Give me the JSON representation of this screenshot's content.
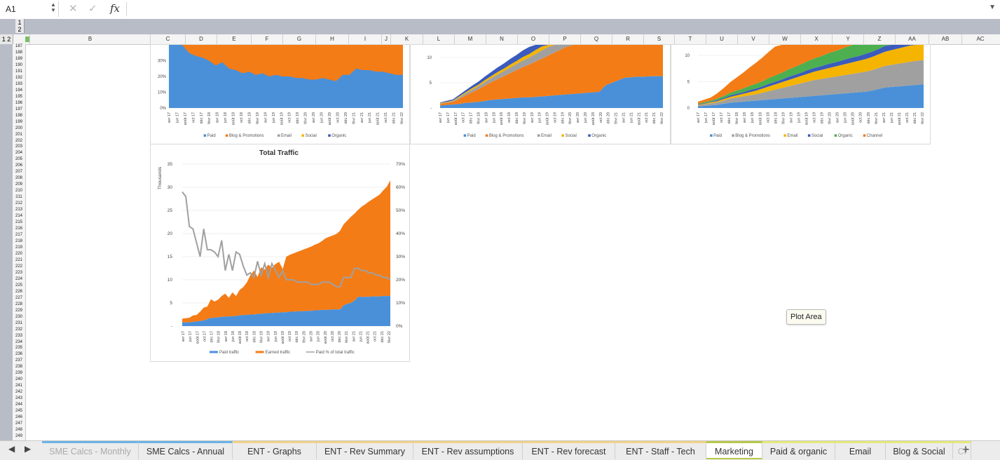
{
  "formula_bar": {
    "cell_ref": "A1",
    "fx_label": "fx",
    "cancel_icon": "close-icon",
    "enter_icon": "check-icon",
    "content": ""
  },
  "outline": {
    "levels": [
      "1",
      "2"
    ],
    "row_level_label": "1 2"
  },
  "columns": [
    "B",
    "C",
    "D",
    "E",
    "F",
    "G",
    "H",
    "I",
    "J",
    "K",
    "L",
    "M",
    "N",
    "O",
    "P",
    "Q",
    "R",
    "S",
    "T",
    "U",
    "V",
    "W",
    "X",
    "Y",
    "Z",
    "AA",
    "AB",
    "AC"
  ],
  "rows": {
    "first": 187,
    "last": 249
  },
  "tooltip": {
    "text": "Plot Area"
  },
  "tabs": [
    {
      "label": "SME Calcs - Monthly",
      "color": "#6ab4e8"
    },
    {
      "label": "SME Calcs - Annual",
      "color": "#6ab4e8"
    },
    {
      "label": "ENT - Graphs",
      "color": "#f2d28a"
    },
    {
      "label": "ENT - Rev Summary",
      "color": "#f2d28a"
    },
    {
      "label": "ENT - Rev assumptions",
      "color": "#f2d28a"
    },
    {
      "label": "ENT - Rev forecast",
      "color": "#f2d28a"
    },
    {
      "label": "ENT - Staff - Tech",
      "color": "#f2d28a"
    },
    {
      "label": "Marketing",
      "color": "#b8c84a",
      "active": true
    },
    {
      "label": "Paid & organic",
      "color": "#e6e87a"
    },
    {
      "label": "Email",
      "color": "#e6e87a"
    },
    {
      "label": "Blog & Social",
      "color": "#e6e87a"
    },
    {
      "label": "Cl",
      "color": "#e6e87a"
    }
  ],
  "add_sheet_label": "+",
  "charts_top": [
    {
      "type": "area",
      "y_ticks": [
        "0%",
        "10%",
        "20%",
        "30%"
      ],
      "x_ticks": [
        "avr 17",
        "jun 17",
        "août 17",
        "oct 17",
        "déc 17",
        "févr 18",
        "avr 18",
        "jun 18",
        "août 18",
        "oct 18",
        "déc 18",
        "févr 19",
        "avr 19",
        "jun 19",
        "août 19",
        "oct 19",
        "déc 19",
        "févr 20",
        "avr 20",
        "jun 20",
        "août 20",
        "oct 20",
        "déc 20",
        "févr 21",
        "avr 21",
        "jun 21",
        "août 21",
        "oct 21",
        "déc 21",
        "févr 22"
      ],
      "legend": [
        {
          "name": "Paid",
          "color": "#4a90d9"
        },
        {
          "name": "Blog & Promotions",
          "color": "#f47c16"
        },
        {
          "name": "Email",
          "color": "#a0a0a0"
        },
        {
          "name": "Social",
          "color": "#f5b400"
        },
        {
          "name": "Organic",
          "color": "#3a5bbd"
        }
      ],
      "series": [
        {
          "name": "Paid",
          "values": [
            55,
            42,
            40,
            35,
            33,
            32,
            30,
            27,
            29,
            25,
            24,
            22,
            23,
            21,
            22,
            20,
            21,
            20,
            20,
            19,
            19,
            18,
            18,
            19,
            18,
            17,
            21,
            21,
            25,
            24,
            24,
            23,
            23,
            22,
            21,
            21
          ]
        }
      ]
    },
    {
      "type": "area",
      "y_ticks": [
        "-",
        "5",
        "10"
      ],
      "x_ticks": [
        "avr 17",
        "jun 17",
        "août 17",
        "oct 17",
        "déc 17",
        "févr 18",
        "avr 18",
        "jun 18",
        "août 18",
        "oct 18",
        "déc 18",
        "févr 19",
        "avr 19",
        "jun 19",
        "août 19",
        "oct 19",
        "déc 19",
        "févr 20",
        "avr 20",
        "jun 20",
        "août 20",
        "oct 20",
        "déc 20",
        "févr 21",
        "avr 21",
        "jun 21",
        "août 21",
        "oct 21",
        "déc 21",
        "févr 22"
      ],
      "legend": [
        {
          "name": "Paid",
          "color": "#4a90d9"
        },
        {
          "name": "Blog & Promotions",
          "color": "#f47c16"
        },
        {
          "name": "Email",
          "color": "#a0a0a0"
        },
        {
          "name": "Social",
          "color": "#f5b400"
        },
        {
          "name": "Organic",
          "color": "#3a5bbd"
        }
      ],
      "series": [
        {
          "name": "Paid",
          "values": [
            0.5,
            0.6,
            0.7,
            0.8,
            1.0,
            1.1,
            1.2,
            1.4,
            1.6,
            1.7,
            1.8,
            1.9,
            2.0,
            2.1,
            2.1,
            2.2,
            2.3,
            2.4,
            2.5,
            2.6,
            2.7,
            2.8,
            2.9,
            3.0,
            3.1,
            3.2,
            4.5,
            5.0,
            5.5,
            6.0,
            6.1,
            6.2,
            6.2,
            6.3,
            6.3,
            6.3
          ]
        },
        {
          "name": "Blog & Promotions",
          "values": [
            0.3,
            0.4,
            0.5,
            1.0,
            1.5,
            2.0,
            2.5,
            3.0,
            3.5,
            4.0,
            4.5,
            5.0,
            5.5,
            6.0,
            6.5,
            7.0,
            7.5,
            8.0,
            8.5,
            9.0,
            9.5,
            10,
            10.5,
            11,
            11.5,
            12,
            12.5,
            13,
            13.5,
            14,
            14.5,
            15,
            15.5,
            16,
            16.5,
            17
          ]
        },
        {
          "name": "Email",
          "values": [
            0.1,
            0.1,
            0.2,
            0.3,
            0.4,
            0.5,
            0.6,
            0.7,
            0.8,
            0.9,
            1.0,
            1.1,
            1.2,
            1.3,
            1.4,
            1.5,
            1.6,
            1.7,
            1.8,
            1.9,
            2.0,
            2.1,
            2.2,
            2.3,
            2.4,
            2.5,
            2.6,
            2.7,
            2.8,
            2.9,
            3.0,
            3.1,
            3.2,
            3.3,
            3.4,
            3.5
          ]
        },
        {
          "name": "Social",
          "values": [
            0.1,
            0.1,
            0.1,
            0.2,
            0.2,
            0.3,
            0.3,
            0.4,
            0.4,
            0.5,
            0.5,
            0.6,
            0.6,
            0.7,
            0.7,
            0.8,
            0.8,
            0.9,
            0.9,
            1.0,
            1.0,
            1.1,
            1.1,
            1.2,
            1.2,
            1.3,
            1.3,
            1.4,
            1.4,
            1.5,
            1.5,
            1.6,
            1.6,
            1.7,
            1.7,
            1.8
          ]
        },
        {
          "name": "Organic",
          "values": [
            0.1,
            0.2,
            0.2,
            0.3,
            0.4,
            0.5,
            0.6,
            0.7,
            0.8,
            0.9,
            1.0,
            1.1,
            1.2,
            1.3,
            1.4,
            1.5,
            1.6,
            1.7,
            1.8,
            1.9,
            2.0,
            2.1,
            2.2,
            2.3,
            2.4,
            2.5,
            2.6,
            2.7,
            2.8,
            2.9,
            3.0,
            3.1,
            3.2,
            3.3,
            3.4,
            3.5
          ]
        }
      ]
    },
    {
      "type": "area",
      "y_ticks": [
        "0",
        "5",
        "10"
      ],
      "x_ticks": [
        "avr 17",
        "jun 17",
        "août 17",
        "oct 17",
        "déc 17",
        "févr 18",
        "avr 18",
        "jun 18",
        "août 18",
        "oct 18",
        "déc 18",
        "févr 19",
        "avr 19",
        "jun 19",
        "août 19",
        "oct 19",
        "déc 19",
        "févr 20",
        "avr 20",
        "jun 20",
        "août 20",
        "oct 20",
        "déc 20",
        "févr 21",
        "avr 21",
        "jun 21",
        "août 21",
        "oct 21",
        "déc 21",
        "févr 22"
      ],
      "legend": [
        {
          "name": "Paid",
          "color": "#4a90d9"
        },
        {
          "name": "Blog & Promotions",
          "color": "#a0a0a0"
        },
        {
          "name": "Email",
          "color": "#f5b400"
        },
        {
          "name": "Social",
          "color": "#3a5bbd"
        },
        {
          "name": "Organic",
          "color": "#4caf50"
        },
        {
          "name": "Channel",
          "color": "#f47c16"
        }
      ],
      "series": [
        {
          "name": "Paid",
          "values": [
            0.3,
            0.4,
            0.5,
            0.6,
            0.8,
            1.0,
            1.1,
            1.2,
            1.3,
            1.4,
            1.5,
            1.6,
            1.7,
            1.8,
            1.9,
            2.0,
            2.1,
            2.2,
            2.3,
            2.4,
            2.5,
            2.6,
            2.7,
            2.8,
            2.9,
            3.0,
            3.1,
            3.3,
            3.6,
            3.9,
            4.0,
            4.1,
            4.2,
            4.3,
            4.4,
            4.5
          ]
        },
        {
          "name": "Blog & Promotions",
          "values": [
            0.2,
            0.3,
            0.4,
            0.5,
            0.6,
            0.8,
            0.9,
            1.0,
            1.1,
            1.2,
            1.4,
            1.6,
            1.8,
            2.0,
            2.2,
            2.4,
            2.6,
            2.8,
            3.0,
            3.1,
            3.2,
            3.3,
            3.4,
            3.5,
            3.6,
            3.7,
            3.8,
            3.9,
            4.0,
            4.1,
            4.2,
            4.3,
            4.4,
            4.5,
            4.6,
            4.6
          ]
        },
        {
          "name": "Email",
          "values": [
            0.1,
            0.1,
            0.2,
            0.2,
            0.3,
            0.3,
            0.4,
            0.5,
            0.6,
            0.7,
            0.8,
            0.9,
            1.0,
            1.1,
            1.2,
            1.3,
            1.4,
            1.5,
            1.6,
            1.7,
            1.8,
            1.9,
            2.0,
            2.1,
            2.2,
            2.3,
            2.4,
            2.5,
            2.6,
            2.7,
            2.8,
            2.9,
            3.0,
            3.1,
            3.2,
            3.3
          ]
        },
        {
          "name": "Social",
          "values": [
            0.1,
            0.1,
            0.1,
            0.2,
            0.2,
            0.3,
            0.3,
            0.3,
            0.4,
            0.4,
            0.4,
            0.5,
            0.5,
            0.5,
            0.6,
            0.6,
            0.6,
            0.7,
            0.7,
            0.7,
            0.8,
            0.8,
            0.8,
            0.9,
            0.9,
            0.9,
            1.0,
            1.0,
            1.0,
            1.1,
            1.1,
            1.1,
            1.2,
            1.2,
            1.2,
            1.3
          ]
        },
        {
          "name": "Organic",
          "values": [
            0.1,
            0.2,
            0.2,
            0.3,
            0.4,
            0.5,
            0.6,
            0.7,
            0.8,
            0.9,
            1.0,
            1.1,
            1.2,
            1.3,
            1.4,
            1.5,
            1.6,
            1.7,
            1.8,
            1.9,
            2.0,
            2.1,
            2.2,
            2.3,
            2.4,
            2.5,
            2.6,
            2.7,
            2.8,
            2.9,
            3.0,
            3.1,
            3.2,
            3.3,
            3.4,
            3.5
          ]
        },
        {
          "name": "Channel",
          "values": [
            0.4,
            0.5,
            0.6,
            1.0,
            1.5,
            2.0,
            2.5,
            3.0,
            3.5,
            4.0,
            4.5,
            5.0,
            5.5,
            6.0,
            6.5,
            7.0,
            7.5,
            8.0,
            8.5,
            9.0,
            9.5,
            10,
            10.5,
            11,
            11.5,
            12,
            12.5,
            13,
            13.5,
            14,
            14.5,
            15,
            15.5,
            16,
            16.5,
            17
          ]
        }
      ]
    }
  ],
  "chart_data": {
    "type": "area",
    "title": "Total Traffic",
    "ylabel": "Thousands",
    "ylim": [
      0,
      35
    ],
    "y2lim": [
      0,
      0.7
    ],
    "y_ticks": [
      "",
      "5",
      "10",
      "15",
      "20",
      "25",
      "30",
      "35"
    ],
    "y2_ticks": [
      "0%",
      "10%",
      "20%",
      "30%",
      "40%",
      "50%",
      "60%",
      "70%"
    ],
    "x": [
      "avr 17",
      "mai 17",
      "jun 17",
      "juil 17",
      "août 17",
      "sept 17",
      "oct 17",
      "nov 17",
      "déc 17",
      "janv 18",
      "févr 18",
      "mars 18",
      "avr 18",
      "mai 18",
      "jun 18",
      "juil 18",
      "août 18",
      "sept 18",
      "oct 18",
      "nov 18",
      "déc 18",
      "janv 19",
      "févr 19",
      "mars 19",
      "avr 19",
      "mai 19",
      "jun 19",
      "juil 19",
      "août 19",
      "sept 19",
      "oct 19",
      "nov 19",
      "déc 19",
      "janv 20",
      "févr 20",
      "mars 20",
      "avr 20",
      "mai 20",
      "jun 20",
      "juil 20",
      "août 20",
      "sept 20",
      "oct 20",
      "nov 20",
      "déc 20",
      "janv 21",
      "févr 21",
      "mars 21",
      "avr 21",
      "mai 21",
      "jun 21",
      "juil 21",
      "août 21",
      "sept 21",
      "oct 21",
      "nov 21",
      "déc 21",
      "janv 22",
      "févr 22"
    ],
    "x_tick_labels": [
      "avr 17",
      "jun 17",
      "août 17",
      "oct 17",
      "déc 17",
      "févr 18",
      "avr 18",
      "jun 18",
      "août 18",
      "oct 18",
      "déc 18",
      "févr 19",
      "avr 19",
      "jun 19",
      "août 19",
      "oct 19",
      "déc 19",
      "févr 20",
      "avr 20",
      "jun 20",
      "août 20",
      "oct 20",
      "déc 20",
      "févr 21",
      "avr 21",
      "jun 21",
      "août 21",
      "oct 21",
      "déc 21",
      "févr 22"
    ],
    "series": [
      {
        "name": "Paid traffic",
        "color": "#4a90d9",
        "values": [
          0.8,
          0.8,
          0.8,
          0.9,
          1.0,
          1.1,
          1.2,
          1.5,
          1.8,
          1.8,
          1.9,
          2.0,
          2.0,
          2.1,
          2.1,
          2.2,
          2.3,
          2.4,
          2.4,
          2.5,
          2.5,
          2.6,
          2.7,
          2.7,
          2.8,
          2.8,
          2.9,
          2.9,
          3.0,
          3.0,
          3.1,
          3.1,
          3.2,
          3.2,
          3.2,
          3.3,
          3.3,
          3.4,
          3.4,
          3.5,
          3.5,
          3.5,
          3.6,
          3.6,
          3.6,
          4.5,
          4.8,
          5.0,
          5.5,
          6.3,
          6.3,
          6.3,
          6.3,
          6.4,
          6.4,
          6.4,
          6.5,
          6.5,
          6.5
        ]
      },
      {
        "name": "Earned traffic",
        "color": "#f47c16",
        "values": [
          0.8,
          0.9,
          1.0,
          1.4,
          1.4,
          2.0,
          2.8,
          2.7,
          4.0,
          3.5,
          3.8,
          4.5,
          5.0,
          4.0,
          5.2,
          4.3,
          5.5,
          6.0,
          7.0,
          8.5,
          9.5,
          8.0,
          10.0,
          9.5,
          10.5,
          9.8,
          10.5,
          11.0,
          9.3,
          12.0,
          12.3,
          12.6,
          12.8,
          13.1,
          13.4,
          13.6,
          13.9,
          14.2,
          14.5,
          14.9,
          15.5,
          15.8,
          16.0,
          16.3,
          17.0,
          17.5,
          18.0,
          18.6,
          18.8,
          18.8,
          19.5,
          20.0,
          20.6,
          21.0,
          21.5,
          22.0,
          22.8,
          23.6,
          25.0
        ]
      },
      {
        "name": "Paid % of total traffic",
        "color": "#a0a0a0",
        "axis": "secondary",
        "values": [
          0.58,
          0.56,
          0.43,
          0.42,
          0.36,
          0.3,
          0.42,
          0.33,
          0.33,
          0.32,
          0.3,
          0.37,
          0.24,
          0.31,
          0.24,
          0.32,
          0.31,
          0.26,
          0.22,
          0.23,
          0.21,
          0.28,
          0.22,
          0.27,
          0.21,
          0.27,
          0.24,
          0.21,
          0.24,
          0.2,
          0.2,
          0.2,
          0.19,
          0.19,
          0.19,
          0.19,
          0.18,
          0.18,
          0.18,
          0.19,
          0.19,
          0.19,
          0.18,
          0.17,
          0.17,
          0.21,
          0.21,
          0.21,
          0.25,
          0.25,
          0.24,
          0.24,
          0.23,
          0.23,
          0.22,
          0.22,
          0.21,
          0.21,
          0.2
        ]
      }
    ],
    "legend_position": "bottom",
    "grid": true
  }
}
